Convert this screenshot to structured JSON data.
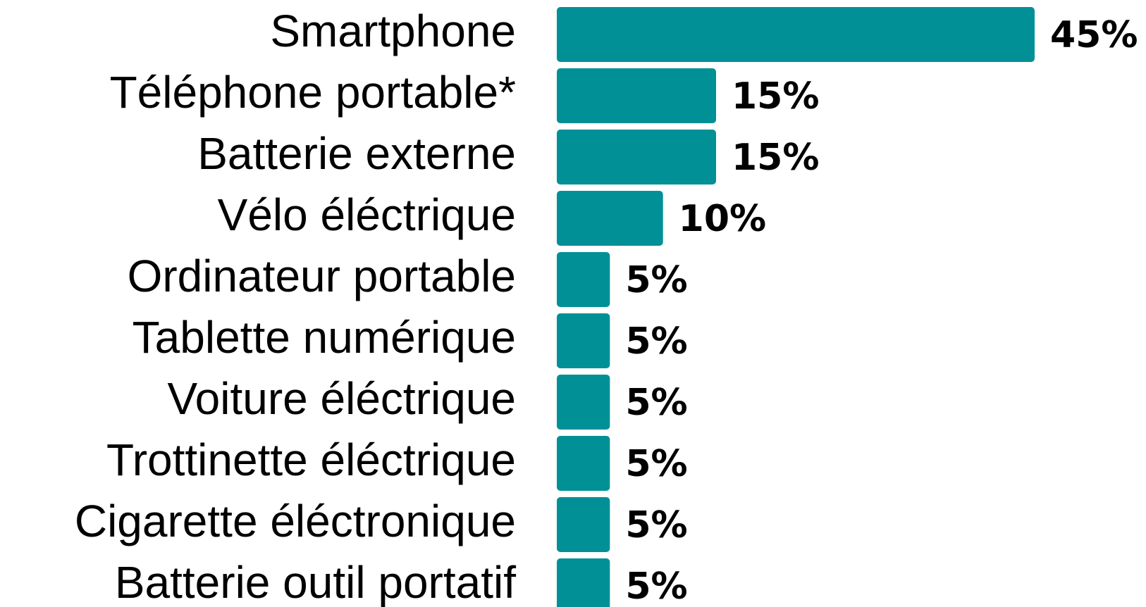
{
  "chart_data": {
    "type": "bar",
    "orientation": "horizontal",
    "categories": [
      "Smartphone",
      "Téléphone portable*",
      "Batterie externe",
      "Vélo éléctrique",
      "Ordinateur portable",
      "Tablette numérique",
      "Voiture éléctrique",
      "Trottinette éléctrique",
      "Cigarette éléctronique",
      "Batterie outil portatif"
    ],
    "values": [
      45,
      15,
      15,
      10,
      5,
      5,
      5,
      5,
      5,
      5
    ],
    "value_labels": [
      "45%",
      "15%",
      "15%",
      "10%",
      "5%",
      "5%",
      "5%",
      "5%",
      "5%",
      "5%"
    ],
    "color": "#009096"
  }
}
